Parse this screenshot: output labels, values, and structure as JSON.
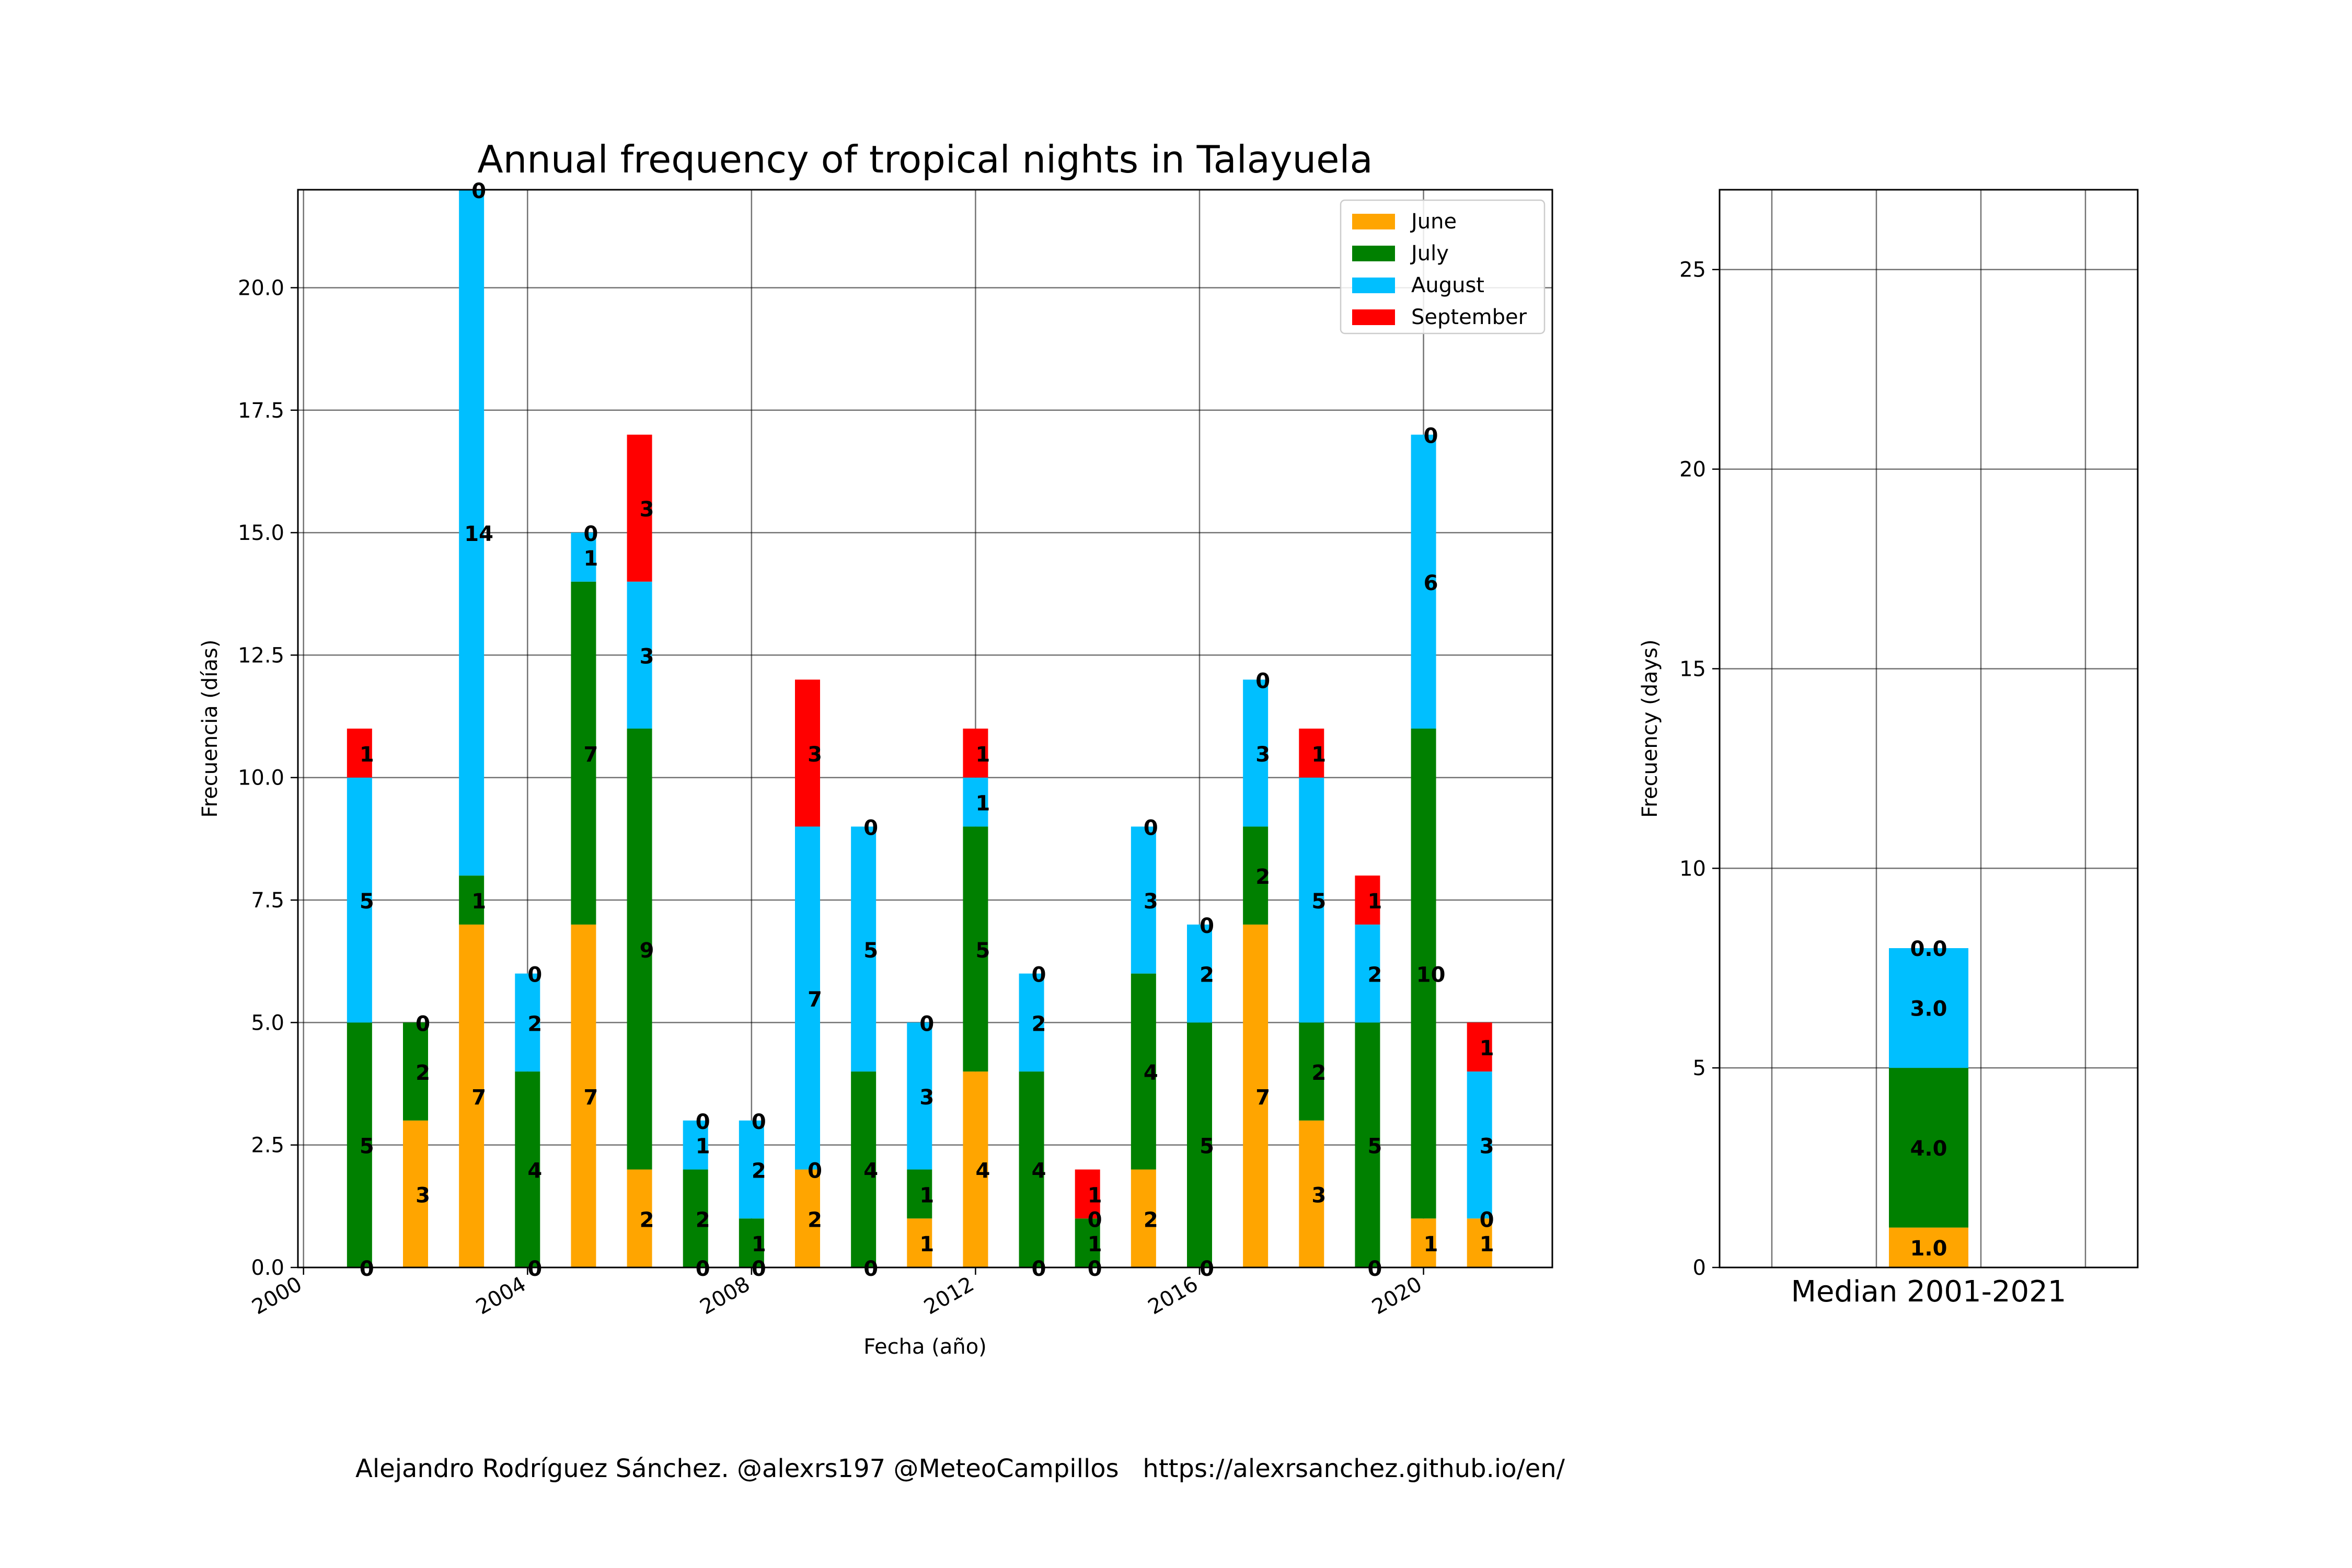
{
  "colors": {
    "June": "#FFA500",
    "July": "#008000",
    "August": "#00BFFF",
    "September": "#FF0000"
  },
  "footer": "Alejandro Rodríguez Sánchez. @alexrs197 @MeteoCampillos   https://alexrsanchez.github.io/en/",
  "chart_data": [
    {
      "type": "bar",
      "stacked": true,
      "title": "Annual frequency of tropical nights in Talayuela",
      "xlabel": "Fecha (año)",
      "ylabel": "Frecuencia (días)",
      "xlim": [
        1999.9,
        2022.3
      ],
      "ylim": [
        0,
        22
      ],
      "xticks": [
        2000,
        2004,
        2008,
        2012,
        2016,
        2020
      ],
      "yticks": [
        0.0,
        2.5,
        5.0,
        7.5,
        10.0,
        12.5,
        15.0,
        17.5,
        20.0
      ],
      "grid": true,
      "legend_position": "top-right",
      "x": [
        2001,
        2002,
        2003,
        2004,
        2005,
        2006,
        2007,
        2008,
        2009,
        2010,
        2011,
        2012,
        2013,
        2014,
        2015,
        2016,
        2017,
        2018,
        2019,
        2020,
        2021
      ],
      "series": [
        {
          "name": "June",
          "values": [
            0,
            3,
            7,
            0,
            7,
            2,
            0,
            0,
            2,
            0,
            1,
            4,
            0,
            0,
            2,
            0,
            7,
            3,
            0,
            1,
            1
          ]
        },
        {
          "name": "July",
          "values": [
            5,
            2,
            1,
            4,
            7,
            9,
            2,
            1,
            0,
            4,
            1,
            5,
            4,
            1,
            4,
            5,
            2,
            2,
            5,
            10,
            0
          ]
        },
        {
          "name": "August",
          "values": [
            5,
            0,
            14,
            2,
            1,
            3,
            1,
            2,
            7,
            5,
            3,
            1,
            2,
            0,
            3,
            2,
            3,
            5,
            2,
            6,
            3
          ]
        },
        {
          "name": "September",
          "values": [
            1,
            0,
            0,
            0,
            0,
            3,
            0,
            0,
            3,
            0,
            0,
            1,
            0,
            1,
            0,
            0,
            0,
            1,
            1,
            0,
            1
          ]
        }
      ]
    },
    {
      "type": "bar",
      "stacked": true,
      "title": "",
      "xlabel": "Median 2001-2021",
      "ylabel": "Frecuency (days)",
      "ylim": [
        0,
        27
      ],
      "yticks": [
        0,
        5,
        10,
        15,
        20,
        25
      ],
      "grid": true,
      "series": [
        {
          "name": "June",
          "values": [
            1.0
          ]
        },
        {
          "name": "July",
          "values": [
            4.0
          ]
        },
        {
          "name": "August",
          "values": [
            3.0
          ]
        },
        {
          "name": "September",
          "values": [
            0.0
          ]
        }
      ]
    }
  ]
}
